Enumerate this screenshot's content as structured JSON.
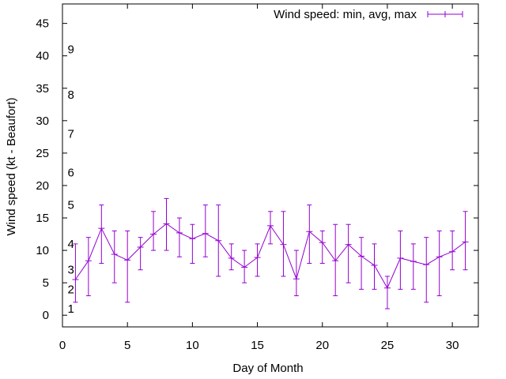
{
  "chart_data": {
    "type": "line",
    "xlabel": "Day of Month",
    "ylabel": "Wind speed (kt - Beaufort)",
    "xlim": [
      0,
      32
    ],
    "ylim": [
      -1.8,
      48
    ],
    "xticks": [
      0,
      5,
      10,
      15,
      20,
      25,
      30
    ],
    "yticks": [
      0,
      5,
      10,
      15,
      20,
      25,
      30,
      35,
      40,
      45
    ],
    "grid": false,
    "legend_position": "top-right",
    "series": [
      {
        "name": "Wind speed: min, avg, max",
        "color": "#9400d3",
        "x": [
          1,
          2,
          3,
          4,
          5,
          6,
          7,
          8,
          9,
          10,
          11,
          12,
          13,
          14,
          15,
          16,
          17,
          18,
          19,
          20,
          21,
          22,
          23,
          24,
          25,
          26,
          27,
          28,
          29,
          30,
          31
        ],
        "avg": [
          5.5,
          8.4,
          13.4,
          9.4,
          8.5,
          10.5,
          12.5,
          14.1,
          12.7,
          11.8,
          12.6,
          11.5,
          8.8,
          7.4,
          8.9,
          13.8,
          10.9,
          5.6,
          12.9,
          11.2,
          8.4,
          10.9,
          9.1,
          7.7,
          4.2,
          8.8,
          8.3,
          7.8,
          9.0,
          9.8,
          11.3
        ],
        "min": [
          2,
          3,
          8,
          5,
          2,
          7,
          10,
          10,
          9,
          8,
          9,
          6,
          7,
          5,
          6,
          11,
          6,
          3,
          8,
          8,
          3,
          5,
          4,
          4,
          1,
          4,
          4,
          2,
          3,
          7,
          7
        ],
        "max": [
          11,
          12,
          17,
          13,
          13,
          12,
          16,
          18,
          15,
          14,
          17,
          17,
          11,
          10,
          11,
          16,
          16,
          10,
          17,
          13,
          14,
          14,
          12,
          11,
          6,
          13,
          11,
          12,
          13,
          13,
          16
        ]
      }
    ],
    "annotations": [
      {
        "x": 0.7,
        "y": 1,
        "text": "1"
      },
      {
        "x": 0.7,
        "y": 4,
        "text": "2"
      },
      {
        "x": 0.7,
        "y": 7,
        "text": "3"
      },
      {
        "x": 0.7,
        "y": 11,
        "text": "4"
      },
      {
        "x": 0.7,
        "y": 17,
        "text": "5"
      },
      {
        "x": 0.7,
        "y": 22,
        "text": "6"
      },
      {
        "x": 0.7,
        "y": 28,
        "text": "7"
      },
      {
        "x": 0.7,
        "y": 34,
        "text": "8"
      },
      {
        "x": 0.7,
        "y": 41,
        "text": "9"
      }
    ]
  }
}
